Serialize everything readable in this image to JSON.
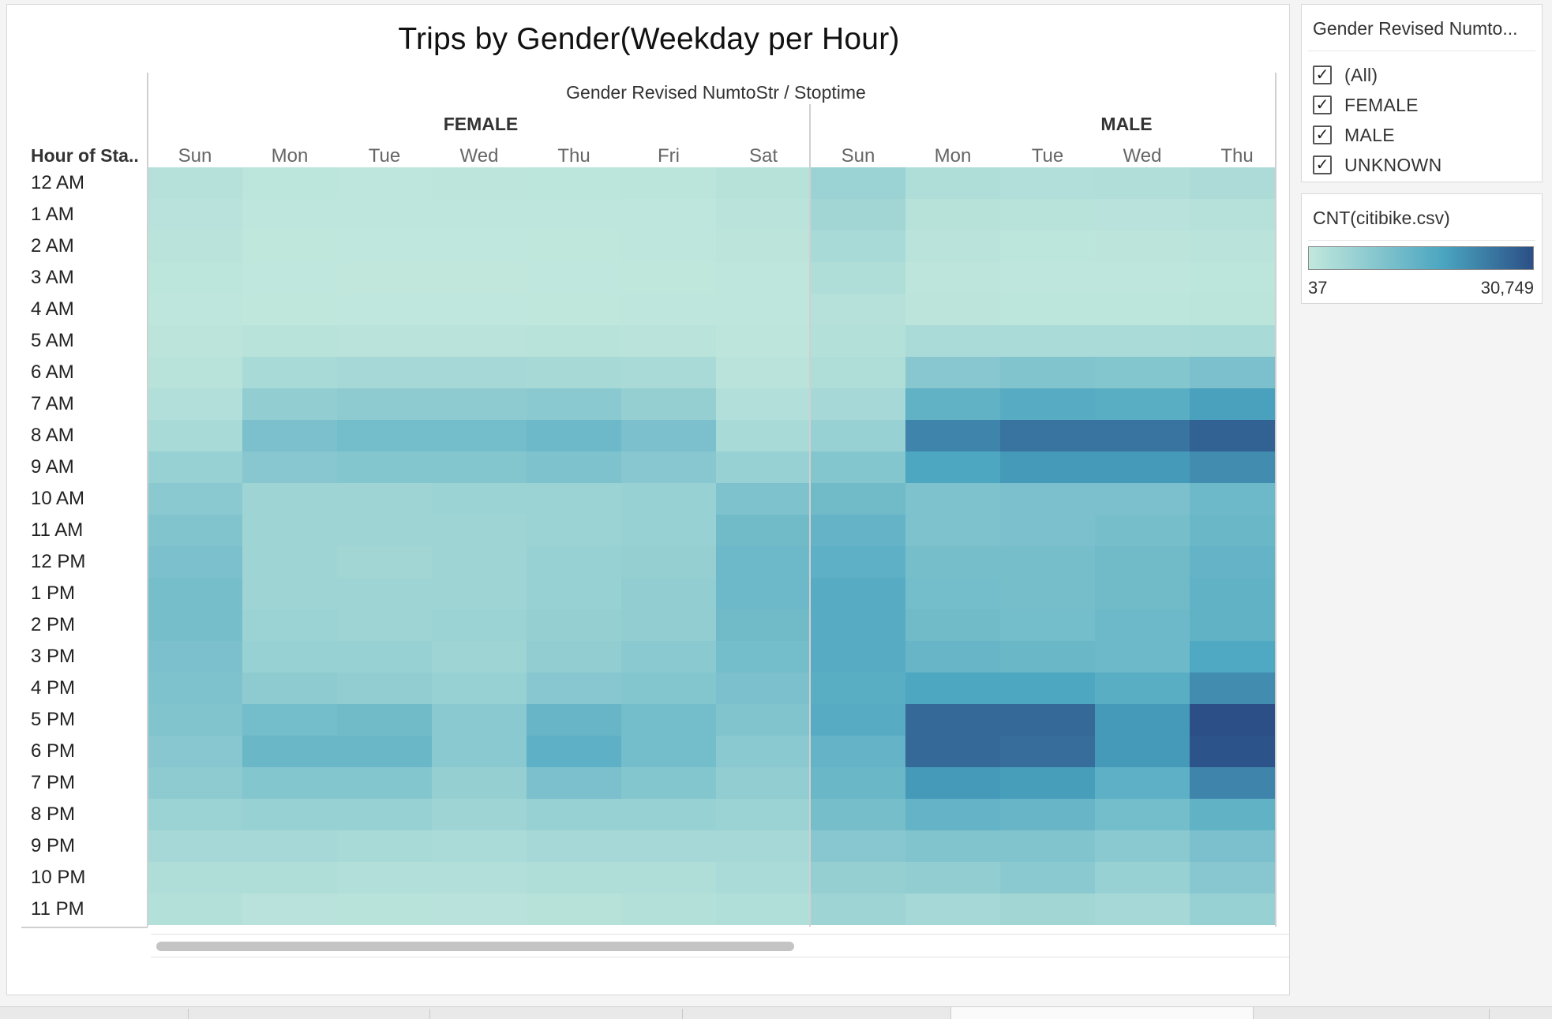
{
  "filter": {
    "title": "Gender Revised Numto...",
    "items": [
      {
        "label": "(All)",
        "checked": true
      },
      {
        "label": "FEMALE",
        "checked": true
      },
      {
        "label": "MALE",
        "checked": true
      },
      {
        "label": "UNKNOWN",
        "checked": true
      }
    ]
  },
  "legend": {
    "title": "CNT(citibike.csv)",
    "min_label": "37",
    "max_label": "30,749",
    "color_low": "#c2e8dd",
    "color_mid": "#4aa5c0",
    "color_high": "#2b4f86"
  },
  "chart_data": {
    "type": "heatmap",
    "title": "Trips by Gender(Weekday per Hour)",
    "column_field": "Gender Revised NumtoStr  /  Stoptime",
    "row_field": "Hour of Sta..",
    "genders": [
      "FEMALE",
      "MALE"
    ],
    "days": [
      "Sun",
      "Mon",
      "Tue",
      "Wed",
      "Thu",
      "Fri",
      "Sat",
      "Sun",
      "Mon",
      "Tue",
      "Wed",
      "Thu"
    ],
    "hours": [
      "12 AM",
      "1 AM",
      "2 AM",
      "3 AM",
      "4 AM",
      "5 AM",
      "6 AM",
      "7 AM",
      "8 AM",
      "9 AM",
      "10 AM",
      "11 AM",
      "12 PM",
      "1 PM",
      "2 PM",
      "3 PM",
      "4 PM",
      "5 PM",
      "6 PM",
      "7 PM",
      "8 PM",
      "9 PM",
      "10 PM",
      "11 PM"
    ],
    "value_range": [
      37,
      30749
    ],
    "values": [
      [
        2000,
        900,
        700,
        800,
        900,
        1100,
        1700,
        6000,
        3000,
        2500,
        2700,
        3300
      ],
      [
        1600,
        600,
        500,
        500,
        600,
        700,
        1300,
        5000,
        1800,
        1500,
        1600,
        1900
      ],
      [
        1200,
        400,
        300,
        300,
        400,
        500,
        1000,
        4000,
        1200,
        900,
        1000,
        1300
      ],
      [
        900,
        300,
        250,
        250,
        300,
        400,
        700,
        3000,
        800,
        700,
        700,
        900
      ],
      [
        700,
        400,
        350,
        350,
        400,
        450,
        600,
        2000,
        1000,
        900,
        900,
        1100
      ],
      [
        1000,
        1500,
        1400,
        1400,
        1500,
        1400,
        800,
        2200,
        3500,
        3500,
        3500,
        4000
      ],
      [
        1500,
        4000,
        4500,
        4500,
        4200,
        3800,
        1400,
        3000,
        9000,
        10000,
        9500,
        11000
      ],
      [
        2500,
        7500,
        8000,
        8000,
        8500,
        7000,
        2500,
        4500,
        15000,
        16500,
        16000,
        19000
      ],
      [
        4000,
        11000,
        12000,
        12000,
        13000,
        11000,
        4000,
        6500,
        23000,
        25500,
        25500,
        28000
      ],
      [
        6500,
        9000,
        9500,
        9500,
        10500,
        9000,
        6500,
        9500,
        18000,
        20000,
        20000,
        22000
      ],
      [
        8500,
        5500,
        5500,
        6000,
        6000,
        6500,
        10500,
        12500,
        10500,
        11000,
        11000,
        13000
      ],
      [
        10000,
        5500,
        5500,
        5500,
        6000,
        6500,
        12500,
        14500,
        10500,
        11000,
        11500,
        13500
      ],
      [
        11000,
        5500,
        5000,
        5500,
        6500,
        7000,
        13000,
        15500,
        11500,
        11500,
        12500,
        14500
      ],
      [
        11500,
        5500,
        5500,
        5500,
        6500,
        7500,
        13000,
        16500,
        12000,
        11500,
        12500,
        15000
      ],
      [
        11500,
        6000,
        5500,
        6000,
        7000,
        7500,
        12500,
        16500,
        12500,
        12000,
        13000,
        15000
      ],
      [
        11000,
        6500,
        6500,
        5500,
        7500,
        8500,
        12000,
        16500,
        14000,
        13500,
        13000,
        17500
      ],
      [
        10500,
        8000,
        7500,
        6500,
        9000,
        9500,
        11000,
        16000,
        18000,
        18000,
        16000,
        22000
      ],
      [
        10000,
        12000,
        12500,
        8500,
        14000,
        12000,
        10000,
        16500,
        27000,
        27000,
        20000,
        30749
      ],
      [
        9000,
        13500,
        13500,
        8500,
        15500,
        12000,
        8500,
        14500,
        27000,
        26500,
        20000,
        30000
      ],
      [
        8000,
        9500,
        9500,
        7000,
        11000,
        9500,
        7500,
        13500,
        20000,
        19500,
        15500,
        23000
      ],
      [
        6000,
        6500,
        6500,
        5500,
        6500,
        6500,
        6000,
        11500,
        14500,
        14000,
        12000,
        15000
      ],
      [
        4500,
        4500,
        4000,
        3500,
        4500,
        4500,
        4500,
        9000,
        10000,
        10000,
        8500,
        11000
      ],
      [
        3000,
        3000,
        2500,
        2500,
        3000,
        3000,
        3500,
        7000,
        7500,
        8500,
        6500,
        9000
      ],
      [
        2200,
        1600,
        1500,
        1600,
        1800,
        2200,
        2800,
        5500,
        4500,
        5000,
        4500,
        6500
      ]
    ]
  },
  "scrollbar": {
    "thumb_fraction": 0.56
  }
}
